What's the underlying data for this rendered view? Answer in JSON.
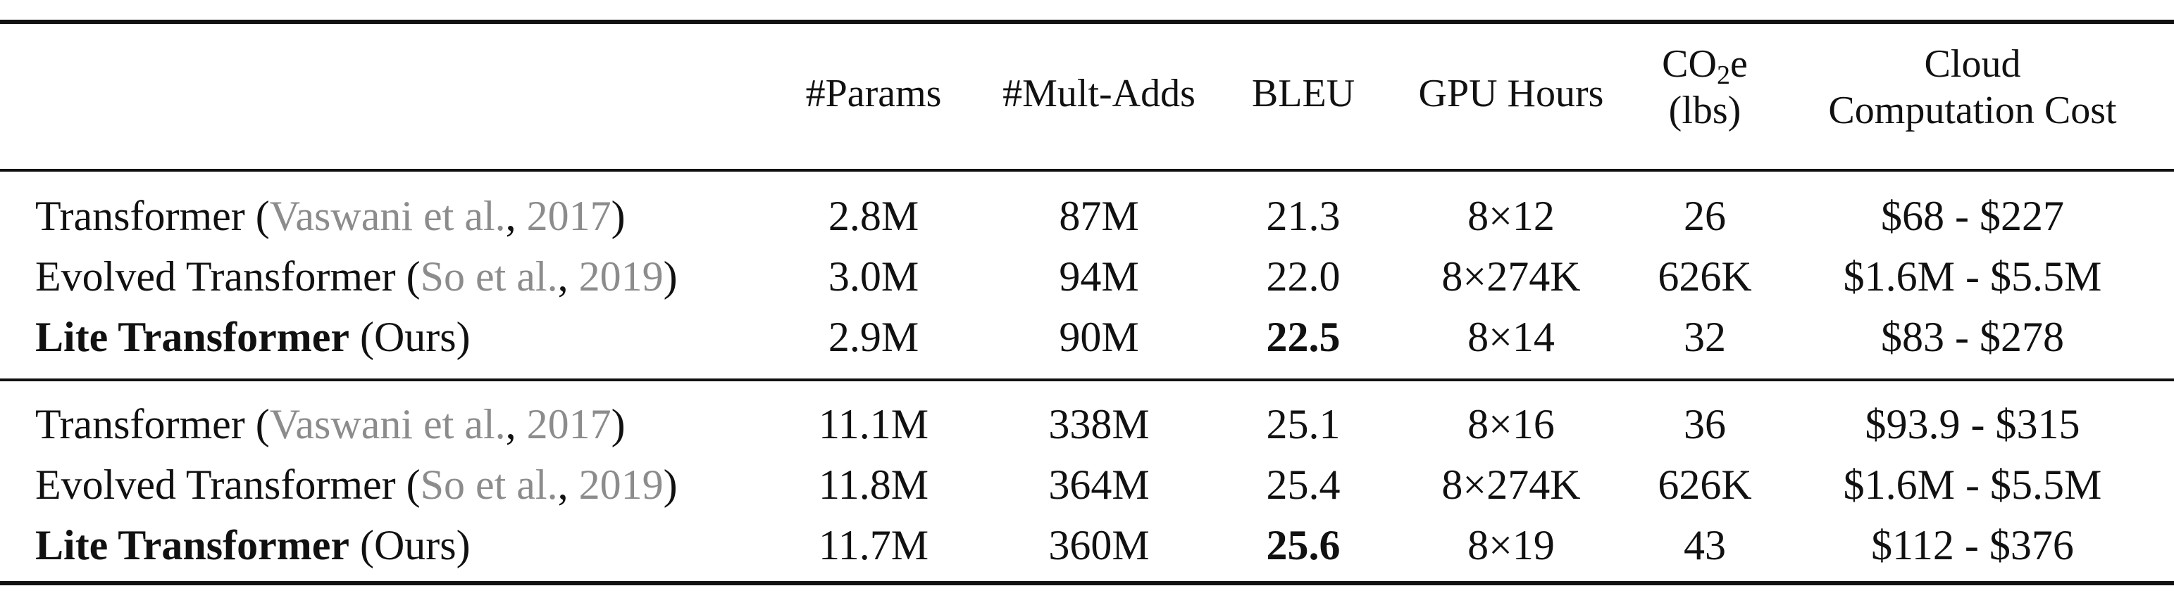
{
  "headers": {
    "params": "#Params",
    "mult_adds": "#Mult-Adds",
    "bleu": "BLEU",
    "gpu_hours": "GPU Hours",
    "co2_line1_prefix": "CO",
    "co2_sub": "2",
    "co2_line1_suffix": "e",
    "co2_line2": "(lbs)",
    "cost_line1": "Cloud",
    "cost_line2": "Computation Cost"
  },
  "groups": [
    {
      "rows": [
        {
          "model": "Transformer",
          "model_bold": false,
          "open": " (",
          "cite_author": "Vaswani et al.",
          "comma": ", ",
          "cite_year": "2017",
          "close": ")",
          "params": "2.8M",
          "mult_adds": "87M",
          "bleu": "21.3",
          "bleu_bold": false,
          "gpu_hours": "8×12",
          "co2": "26",
          "cost": "$68 - $227"
        },
        {
          "model": "Evolved Transformer",
          "model_bold": false,
          "open": " (",
          "cite_author": "So et al.",
          "comma": ", ",
          "cite_year": "2019",
          "close": ")",
          "params": "3.0M",
          "mult_adds": "94M",
          "bleu": "22.0",
          "bleu_bold": false,
          "gpu_hours": "8×274K",
          "co2": "626K",
          "cost": "$1.6M - $5.5M"
        },
        {
          "model": "Lite Transformer",
          "model_bold": true,
          "suffix": " (Ours)",
          "params": "2.9M",
          "mult_adds": "90M",
          "bleu": "22.5",
          "bleu_bold": true,
          "gpu_hours": "8×14",
          "co2": "32",
          "cost": "$83 - $278"
        }
      ]
    },
    {
      "rows": [
        {
          "model": "Transformer",
          "model_bold": false,
          "open": " (",
          "cite_author": "Vaswani et al.",
          "comma": ", ",
          "cite_year": "2017",
          "close": ")",
          "params": "11.1M",
          "mult_adds": "338M",
          "bleu": "25.1",
          "bleu_bold": false,
          "gpu_hours": "8×16",
          "co2": "36",
          "cost": "$93.9 - $315"
        },
        {
          "model": "Evolved Transformer",
          "model_bold": false,
          "open": " (",
          "cite_author": "So et al.",
          "comma": ", ",
          "cite_year": "2019",
          "close": ")",
          "params": "11.8M",
          "mult_adds": "364M",
          "bleu": "25.4",
          "bleu_bold": false,
          "gpu_hours": "8×274K",
          "co2": "626K",
          "cost": "$1.6M - $5.5M"
        },
        {
          "model": "Lite Transformer",
          "model_bold": true,
          "suffix": " (Ours)",
          "params": "11.7M",
          "mult_adds": "360M",
          "bleu": "25.6",
          "bleu_bold": true,
          "gpu_hours": "8×19",
          "co2": "43",
          "cost": "$112 - $376"
        }
      ]
    }
  ]
}
